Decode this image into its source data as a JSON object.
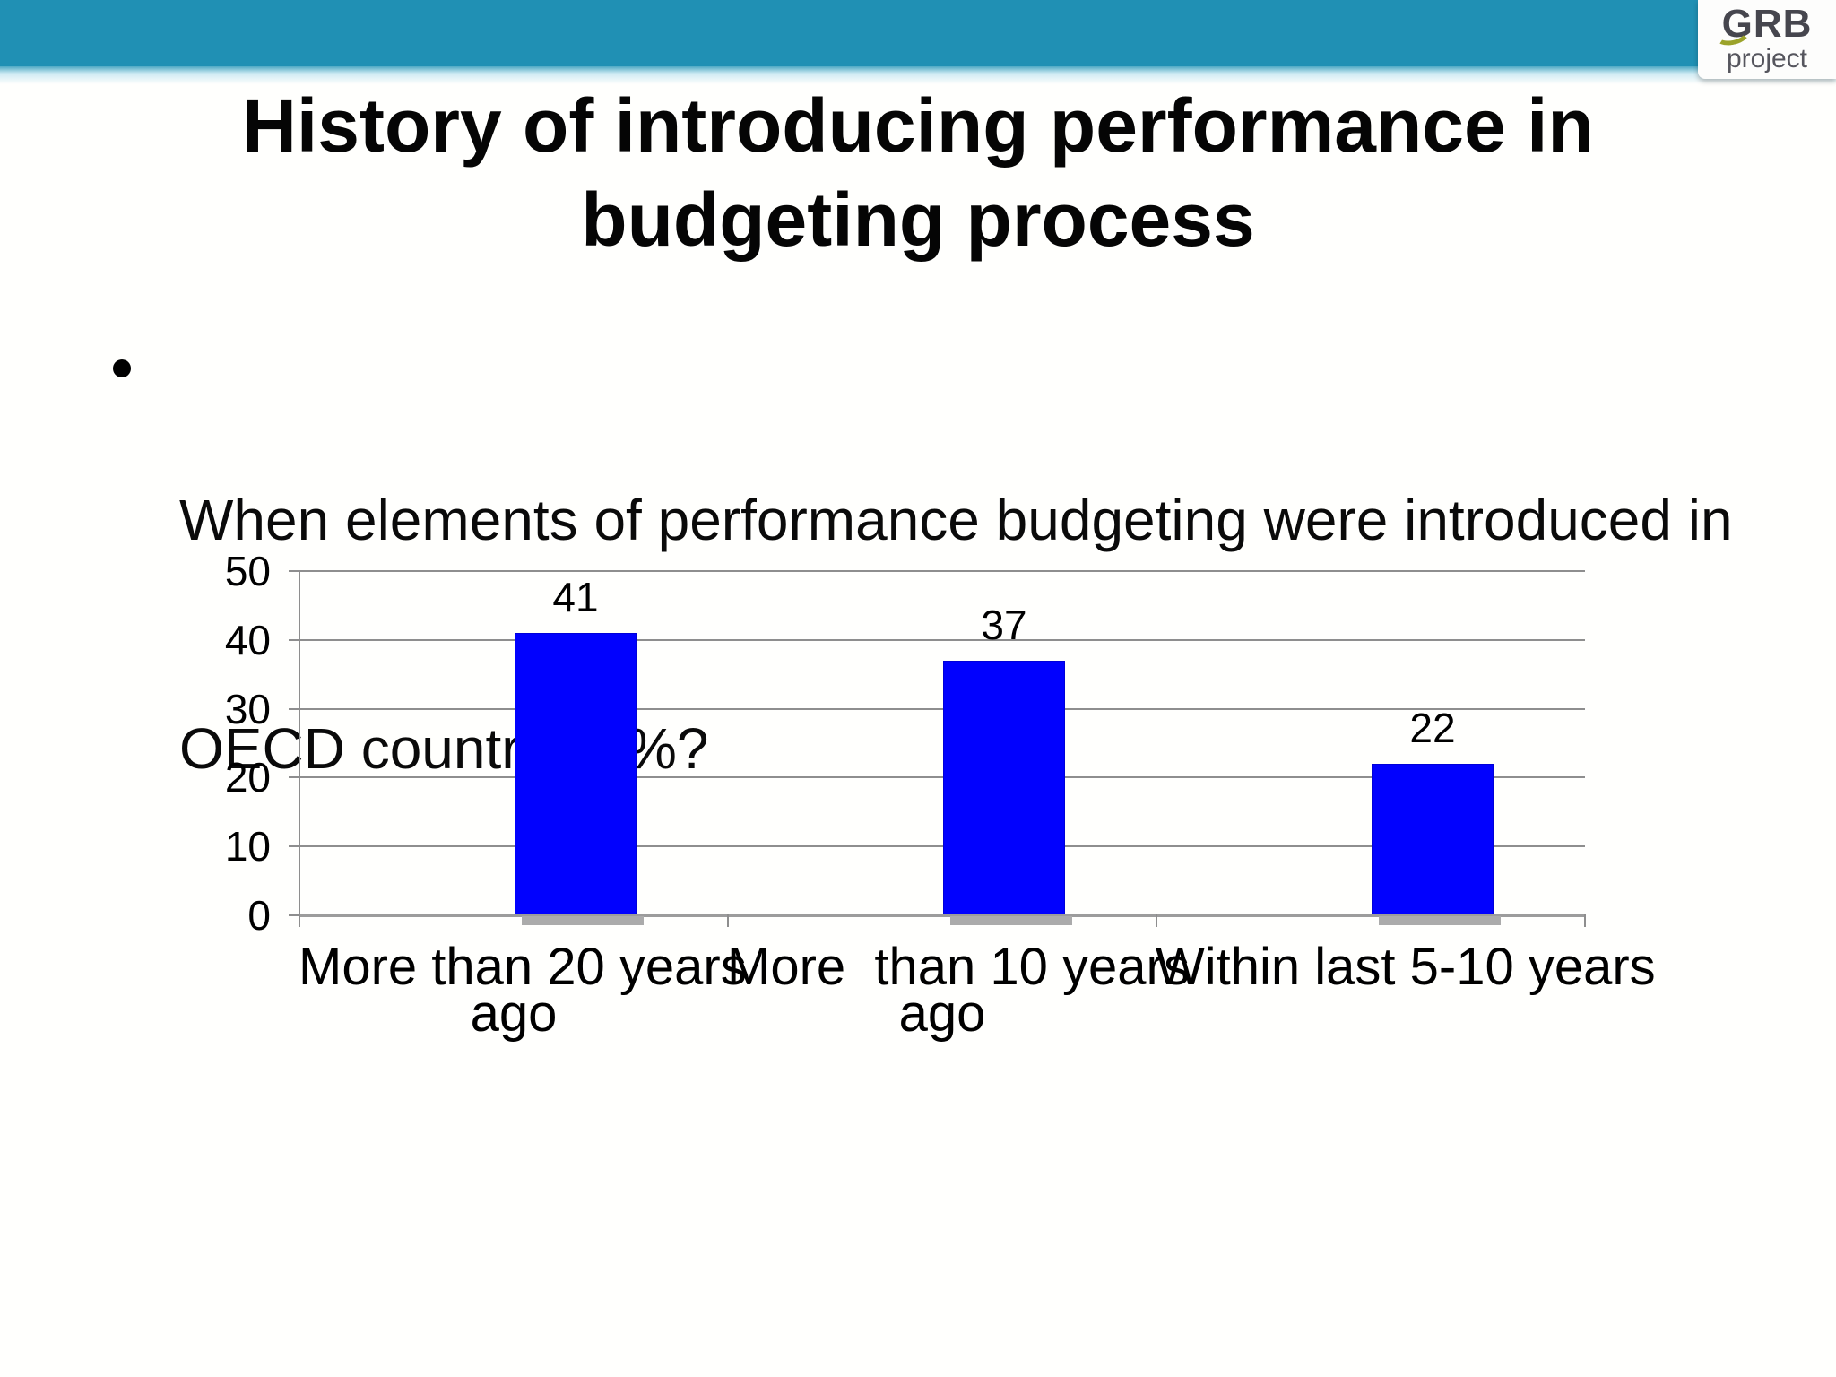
{
  "slide": {
    "title_lines": [
      "History of introducing performance in",
      "budgeting process"
    ],
    "bullet": {
      "lines": [
        "When elements of performance budgeting were introduced in",
        "OECD countries, %?"
      ]
    }
  },
  "logo": {
    "name": "GRB",
    "subtitle": "project"
  },
  "colors": {
    "header_teal": "#2090b4",
    "bar_blue": "#0101fe",
    "grid_gray": "#8e8e8e",
    "axis_gray": "#9c9c9c",
    "logo_dark_gray": "#46464e",
    "logo_light_gray": "#56565e",
    "logo_accent_green": "#9ba32a",
    "text_black": "#000000"
  },
  "chart_data": {
    "type": "bar",
    "title": "",
    "xlabel": "",
    "ylabel": "",
    "categories": [
      "More than 20 years ago",
      "More  than 10 years ago",
      "Within last 5-10 years"
    ],
    "category_label_lines": [
      [
        "More than 20 years",
        "ago"
      ],
      [
        "More  than 10 years",
        "ago"
      ],
      [
        "Within last 5-10 years"
      ]
    ],
    "values": [
      41,
      37,
      22
    ],
    "value_labels": [
      "41",
      "37",
      "22"
    ],
    "y_ticks": [
      0,
      10,
      20,
      30,
      40,
      50
    ],
    "ylim": [
      0,
      50
    ],
    "grid": true,
    "legend": "none",
    "bar_color": "#0101fe"
  }
}
